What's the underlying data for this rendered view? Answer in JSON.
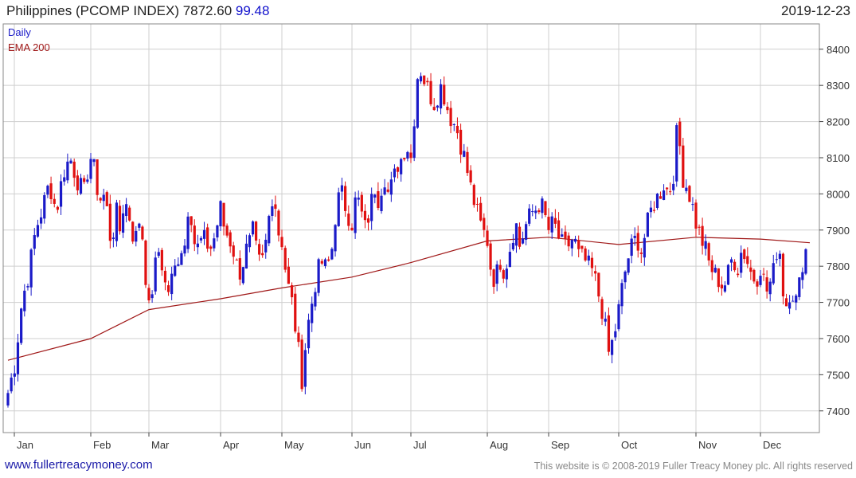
{
  "header": {
    "title": "Philippines (PCOMP INDEX) 7872.60",
    "change": "99.48",
    "date": "2019-12-23"
  },
  "footer": {
    "site": "www.fullertreacymoney.com",
    "copyright": "This website is © 2008-2019 Fuller Treacy Money plc. All rights reserved"
  },
  "colors": {
    "up": "#1a1ac8",
    "down": "#e01010",
    "ema": "#a01818",
    "grid": "#cfcfcf",
    "axis": "#444444"
  },
  "chart_data": {
    "type": "candlestick",
    "legend": [
      "Daily",
      "EMA 200"
    ],
    "legend_placement": "top-left",
    "ylim": [
      7340,
      8470
    ],
    "y_ticks": [
      7400,
      7500,
      7600,
      7700,
      7800,
      7900,
      8000,
      8100,
      8200,
      8300,
      8400
    ],
    "y_axis_side": "right",
    "grid": true,
    "x_ticks": [
      "Jan",
      "Feb",
      "Mar",
      "Apr",
      "May",
      "Jun",
      "Jul",
      "Aug",
      "Sep",
      "Oct",
      "Nov",
      "Dec"
    ],
    "month_keypoints": [
      {
        "month": "Jan",
        "values": [
          7450,
          7530,
          7700,
          7780,
          7900,
          7960,
          8030,
          7950,
          8060,
          8100,
          8040,
          8000,
          8120
        ]
      },
      {
        "month": "Feb",
        "values": [
          8100,
          8060,
          7980,
          8000,
          7950,
          7850,
          7960,
          7900,
          7980,
          7960,
          7890,
          7880,
          7950,
          7800,
          7680
        ]
      },
      {
        "month": "Mar",
        "values": [
          7680,
          7760,
          7850,
          7800,
          7720,
          7760,
          7800,
          7850,
          7860,
          8000,
          7870,
          7850,
          7880,
          7860,
          7850,
          7900,
          7960
        ]
      },
      {
        "month": "Apr",
        "values": [
          7960,
          7900,
          7880,
          7850,
          7800,
          7780,
          7840,
          7860,
          7900,
          7820,
          7800,
          7860,
          7950,
          8020,
          7900,
          7870
        ]
      },
      {
        "month": "May",
        "values": [
          7870,
          7760,
          7700,
          7600,
          7490,
          7620,
          7700,
          7780,
          7810,
          7790,
          7850,
          7980,
          8000,
          7950,
          7920
        ]
      },
      {
        "month": "Jun",
        "values": [
          7920,
          8000,
          7950,
          7900,
          7960,
          8020,
          7980,
          8060,
          8000,
          8030,
          8080,
          8100,
          8140,
          8100
        ]
      },
      {
        "month": "Jul",
        "values": [
          8100,
          8360,
          8300,
          8250,
          8300,
          8220,
          8180,
          8100,
          8000,
          7920,
          7870
        ]
      },
      {
        "month": "Aug",
        "values": [
          7870,
          7780,
          7760,
          7820,
          7790,
          7820,
          7880,
          7920,
          7850,
          7900,
          7930,
          7950,
          7960,
          7980,
          7940,
          7900
        ]
      },
      {
        "month": "Sep",
        "values": [
          7900,
          7920,
          7880,
          7850,
          7860,
          7880,
          7830,
          7820,
          7800,
          7780,
          7720,
          7660,
          7560,
          7600,
          7680
        ]
      },
      {
        "month": "Oct",
        "values": [
          7680,
          7760,
          7820,
          7860,
          7880,
          7840,
          7900,
          7950,
          7980,
          8000,
          8030,
          8000,
          8050,
          8200,
          8050,
          8020,
          7980,
          7920
        ]
      },
      {
        "month": "Nov",
        "values": [
          7920,
          7880,
          7850,
          7800,
          7780,
          7760,
          7740,
          7780,
          7830,
          7790,
          7850,
          7820,
          7780,
          7760,
          7800
        ]
      },
      {
        "month": "Dec",
        "values": [
          7800,
          7730,
          7770,
          7880,
          7680,
          7740,
          7700,
          7820,
          7873
        ]
      }
    ],
    "ema_200": [
      {
        "month": "Jan",
        "value": 7540
      },
      {
        "month": "Feb",
        "value": 7600
      },
      {
        "month": "Mar",
        "value": 7680
      },
      {
        "month": "Apr",
        "value": 7710
      },
      {
        "month": "May",
        "value": 7740
      },
      {
        "month": "Jun",
        "value": 7770
      },
      {
        "month": "Jul",
        "value": 7810
      },
      {
        "month": "Aug",
        "value": 7870
      },
      {
        "month": "Sep",
        "value": 7880
      },
      {
        "month": "Oct",
        "value": 7860
      },
      {
        "month": "Nov",
        "value": 7880
      },
      {
        "month": "Dec",
        "value": 7875
      },
      {
        "month": "end",
        "value": 7865
      }
    ]
  }
}
